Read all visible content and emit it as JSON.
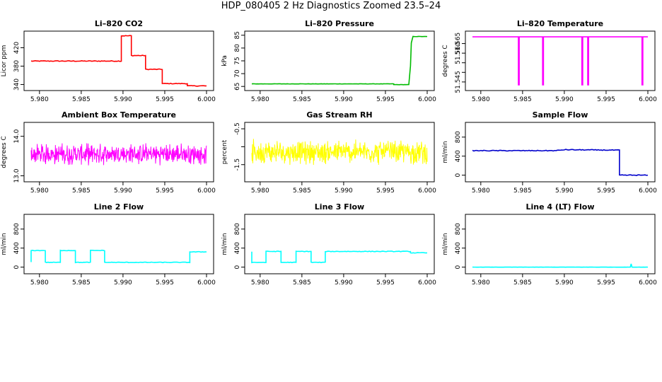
{
  "figure": {
    "title": "HDP_080405  2 Hz Diagnostics Zoomed 23.5–24"
  },
  "chart_data": [
    {
      "type": "line",
      "title": "Li–820 CO2",
      "ylabel": "Licor ppm",
      "xlim": [
        5.979,
        6.0
      ],
      "ylim": [
        333,
        450
      ],
      "x_ticks": [
        "5.980",
        "5.985",
        "5.990",
        "5.995",
        "6.000"
      ],
      "y_ticks": [
        "340",
        "380",
        "420"
      ],
      "series": [
        {
          "color": "#ff0000",
          "noise": 0.8,
          "x": [
            5.979,
            5.9898,
            5.9898,
            5.991,
            5.991,
            5.9927,
            5.9927,
            5.9947,
            5.9947,
            5.9977,
            5.9977,
            6.0
          ],
          "y": [
            391,
            391,
            446,
            446,
            403,
            403,
            373,
            373,
            342,
            342,
            337,
            337
          ]
        }
      ]
    },
    {
      "type": "line",
      "title": "Li–820 Pressure",
      "ylabel": "kPa",
      "xlim": [
        5.979,
        6.0
      ],
      "ylim": [
        64.5,
        85.5
      ],
      "x_ticks": [
        "5.980",
        "5.985",
        "5.990",
        "5.995",
        "6.000"
      ],
      "y_ticks": [
        "65",
        "70",
        "75",
        "80",
        "85"
      ],
      "series": [
        {
          "color": "#00bb00",
          "noise": 0.05,
          "x": [
            5.979,
            5.996,
            5.996,
            5.9978,
            5.998,
            5.9981,
            5.9983,
            6.0
          ],
          "y": [
            66.0,
            66.0,
            65.7,
            65.7,
            73,
            82,
            84.5,
            84.5
          ]
        }
      ]
    },
    {
      "type": "line",
      "title": "Li–820 Temperature",
      "ylabel": "degrees C",
      "xlim": [
        5.979,
        6.0
      ],
      "ylim": [
        51.542,
        51.57
      ],
      "x_ticks": [
        "5.980",
        "5.985",
        "5.990",
        "5.995",
        "6.000"
      ],
      "y_ticks": [
        "51.545",
        "51.560",
        "51.565"
      ],
      "mid_y_ticks": [
        "51.550",
        "51.555"
      ],
      "series": [
        {
          "color": "#ff00ff",
          "noise": 0,
          "x": [
            5.979,
            5.9845,
            5.9845,
            5.9846,
            5.9846,
            5.9874,
            5.9874,
            5.9875,
            5.9875,
            5.9921,
            5.9921,
            5.9922,
            5.9922,
            5.9928,
            5.9928,
            5.9929,
            5.9929,
            5.9993,
            5.9993,
            5.9994,
            5.9994,
            6.0
          ],
          "y": [
            51.5685,
            51.5685,
            51.5435,
            51.5435,
            51.5685,
            51.5685,
            51.5435,
            51.5435,
            51.5685,
            51.5685,
            51.5435,
            51.5435,
            51.5685,
            51.5685,
            51.5435,
            51.5435,
            51.5685,
            51.5685,
            51.5435,
            51.5435,
            51.5685,
            51.5685
          ]
        }
      ]
    },
    {
      "type": "line",
      "title": "Ambient Box Temperature",
      "ylabel": "degrees C",
      "xlim": [
        5.979,
        6.0
      ],
      "ylim": [
        12.92,
        14.28
      ],
      "x_ticks": [
        "5.980",
        "5.985",
        "5.990",
        "5.995",
        "6.000"
      ],
      "y_ticks": [
        "13.0",
        "14.0"
      ],
      "series": [
        {
          "color": "#ff00ff",
          "noise": 0.3,
          "dense": true,
          "x": [
            5.979,
            6.0
          ],
          "y": [
            13.55,
            13.55
          ]
        }
      ]
    },
    {
      "type": "line",
      "title": "Gas Stream RH",
      "ylabel": "percent",
      "xlim": [
        5.979,
        6.0
      ],
      "ylim": [
        -1.9,
        -0.4
      ],
      "x_ticks": [
        "5.980",
        "5.985",
        "5.990",
        "5.995",
        "6.000"
      ],
      "y_ticks": [
        "-1.5",
        "-1",
        "-0.5"
      ],
      "hidden_y_ticks": [
        "-1"
      ],
      "series": [
        {
          "color": "#ffff00",
          "noise": 0.38,
          "dense": true,
          "x": [
            5.979,
            6.0
          ],
          "y": [
            -1.15,
            -1.15
          ]
        }
      ]
    },
    {
      "type": "line",
      "title": "Sample Flow",
      "ylabel": "ml/min",
      "xlim": [
        5.979,
        6.0
      ],
      "ylim": [
        -80,
        1050
      ],
      "x_ticks": [
        "5.980",
        "5.985",
        "5.990",
        "5.995",
        "6.000"
      ],
      "y_ticks": [
        "0",
        "400",
        "800"
      ],
      "series": [
        {
          "color": "#0000cc",
          "noise": 8,
          "x": [
            5.979,
            5.989,
            5.99,
            5.9966,
            5.9966,
            6.0
          ],
          "y": [
            515,
            515,
            535,
            525,
            0,
            0
          ]
        }
      ]
    },
    {
      "type": "line",
      "title": "Line 2 Flow",
      "ylabel": "ml/min",
      "xlim": [
        5.979,
        6.0
      ],
      "ylim": [
        -80,
        1050
      ],
      "x_ticks": [
        "5.980",
        "5.985",
        "5.990",
        "5.995",
        "6.000"
      ],
      "y_ticks": [
        "0",
        "400",
        "800"
      ],
      "series": [
        {
          "color": "#00ffff",
          "noise": 6,
          "x": [
            5.979,
            5.979,
            5.9807,
            5.9807,
            5.9825,
            5.9825,
            5.9843,
            5.9843,
            5.9861,
            5.9861,
            5.9878,
            5.9878,
            5.998,
            5.998,
            6.0
          ],
          "y": [
            100,
            350,
            350,
            100,
            100,
            350,
            350,
            100,
            100,
            350,
            350,
            100,
            100,
            320,
            320
          ]
        }
      ]
    },
    {
      "type": "line",
      "title": "Line 3 Flow",
      "ylabel": "ml/min",
      "xlim": [
        5.979,
        6.0
      ],
      "ylim": [
        -80,
        1050
      ],
      "x_ticks": [
        "5.980",
        "5.985",
        "5.990",
        "5.995",
        "6.000"
      ],
      "y_ticks": [
        "0",
        "400",
        "800"
      ],
      "series": [
        {
          "color": "#00ffff",
          "noise": 6,
          "x": [
            5.979,
            5.979,
            5.9807,
            5.9807,
            5.9825,
            5.9825,
            5.9843,
            5.9843,
            5.9861,
            5.9861,
            5.9878,
            5.9878,
            5.998,
            5.998,
            6.0
          ],
          "y": [
            330,
            100,
            100,
            330,
            330,
            100,
            100,
            330,
            330,
            100,
            100,
            330,
            330,
            300,
            300
          ]
        }
      ]
    },
    {
      "type": "line",
      "title": "Line 4 (LT) Flow",
      "ylabel": "ml/min",
      "xlim": [
        5.979,
        6.0
      ],
      "ylim": [
        -80,
        1050
      ],
      "x_ticks": [
        "5.980",
        "5.985",
        "5.990",
        "5.995",
        "6.000"
      ],
      "y_ticks": [
        "0",
        "400",
        "800"
      ],
      "series": [
        {
          "color": "#00ffff",
          "noise": 1,
          "x": [
            5.979,
            5.9979,
            5.998,
            5.9981,
            6.0
          ],
          "y": [
            0,
            0,
            70,
            0,
            0
          ]
        }
      ]
    }
  ]
}
